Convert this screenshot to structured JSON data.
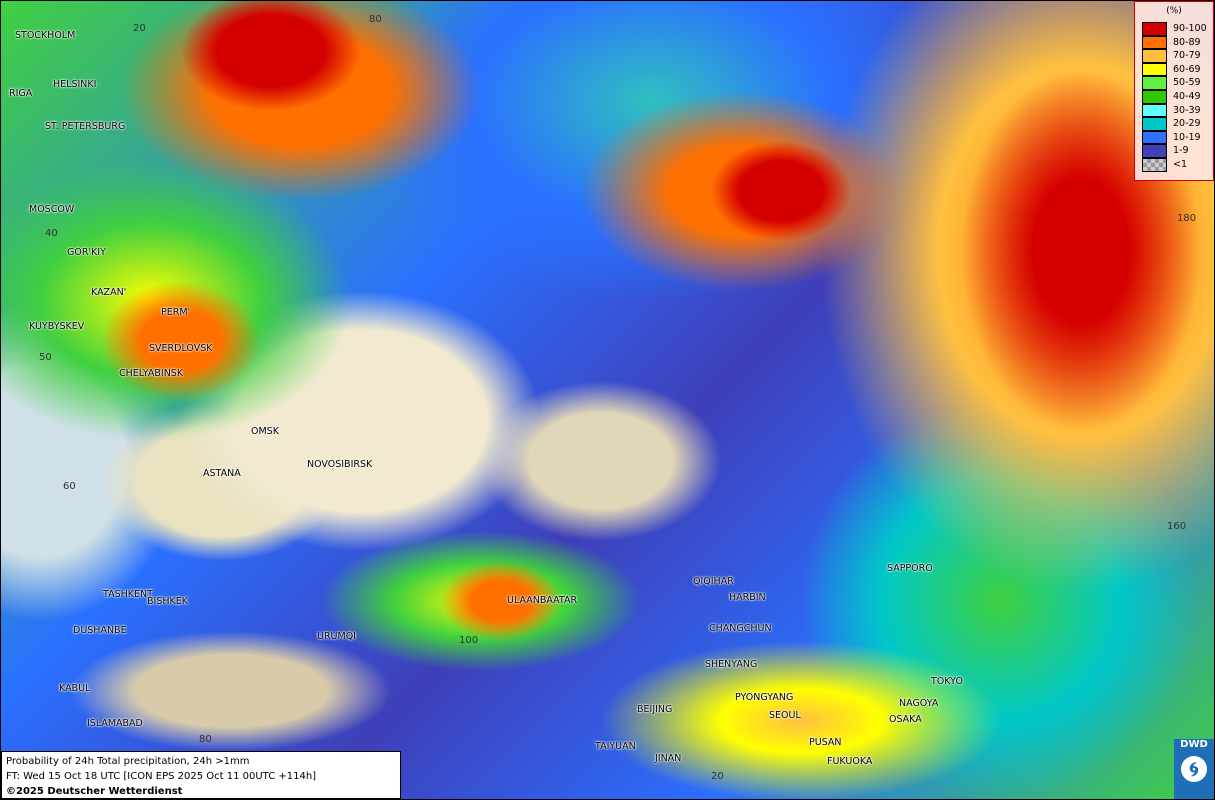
{
  "map": {
    "title": "Probability of 24h Total precipitation, 24h >1mm",
    "forecast_time": "FT: Wed 15 Oct 18 UTC [ICON EPS 2025 Oct 11 00UTC +114h]",
    "copyright": "©2025 Deutscher Wetterdienst",
    "logo_text": "DWD",
    "cities": [
      "STOCKHOLM",
      "HELSINKI",
      "RIGA",
      "ST. PETERSBURG",
      "MOSCOW",
      "GOR'KIY",
      "KAZAN'",
      "PERM'",
      "KUYBYSKEV",
      "SVERDLOVSK",
      "CHELYABINSK",
      "OMSK",
      "ASTANA",
      "NOVOSIBIRSK",
      "TASHKENT",
      "BISHKEK",
      "DUSHANBE",
      "URUMQI",
      "ULAANBAATAR",
      "QIQIHAR",
      "HARBIN",
      "CHANGCHUN",
      "SHENYANG",
      "PYONGYANG",
      "BEIJING",
      "SEOUL",
      "TAIYUAN",
      "JINAN",
      "PUSAN",
      "FUKUOKA",
      "NAGOYA",
      "OSAKA",
      "TOKYO",
      "SAPPORO",
      "KABUL",
      "ISLAMABAD"
    ],
    "grid_labels": [
      "80",
      "20",
      "40",
      "50",
      "60",
      "100",
      "80",
      "180",
      "160",
      "20"
    ]
  },
  "legend": {
    "unit": "(%)",
    "items": [
      {
        "label": "90-100",
        "color": "#d40000"
      },
      {
        "label": "80-89",
        "color": "#ff7000"
      },
      {
        "label": "70-79",
        "color": "#ffc040"
      },
      {
        "label": "60-69",
        "color": "#ffff00"
      },
      {
        "label": "50-59",
        "color": "#60f040"
      },
      {
        "label": "40-49",
        "color": "#30c800"
      },
      {
        "label": "30-39",
        "color": "#60ffff"
      },
      {
        "label": "20-29",
        "color": "#00c8c8"
      },
      {
        "label": "10-19",
        "color": "#3070ff"
      },
      {
        "label": "1-9",
        "color": "#4040b8"
      },
      {
        "label": "<1",
        "color": "checker"
      }
    ]
  }
}
